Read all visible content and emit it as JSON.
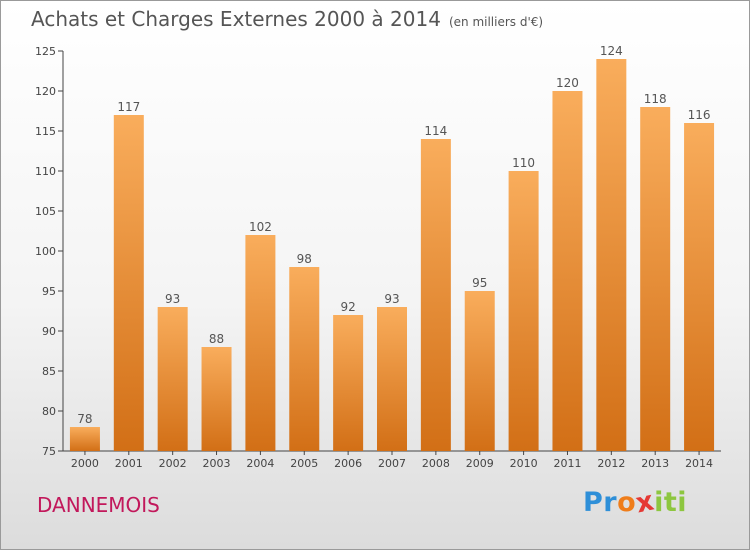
{
  "header": {
    "title": "Achats et Charges Externes 2000 à 2014",
    "subtitle": "(en milliers d'€)"
  },
  "footer": {
    "place": "DANNEMOIS",
    "logo": "Proxiti",
    "logo_letters": [
      "P",
      "r",
      "o",
      "x",
      "i",
      "t",
      "i"
    ],
    "logo_colors": [
      "#2e8fd8",
      "#2e8fd8",
      "#ef7d1a",
      "#e53935",
      "#8dc63f",
      "#8dc63f",
      "#8dc63f"
    ]
  },
  "colors": {
    "bar_light": "#f9ad5c",
    "bar_dark": "#d26f16",
    "text": "#555555",
    "place": "#c2185b"
  },
  "chart_data": {
    "type": "bar",
    "title": "Achats et Charges Externes 2000 à 2014",
    "subtitle": "(en milliers d'€)",
    "categories": [
      "2000",
      "2001",
      "2002",
      "2003",
      "2004",
      "2005",
      "2006",
      "2007",
      "2008",
      "2009",
      "2010",
      "2011",
      "2012",
      "2013",
      "2014"
    ],
    "values": [
      78,
      117,
      93,
      88,
      102,
      98,
      92,
      93,
      114,
      95,
      110,
      120,
      124,
      118,
      116
    ],
    "ylim": [
      75,
      125
    ],
    "yticks": [
      75,
      80,
      85,
      90,
      95,
      100,
      105,
      110,
      115,
      120,
      125
    ],
    "grid": false,
    "data_labels": true
  }
}
